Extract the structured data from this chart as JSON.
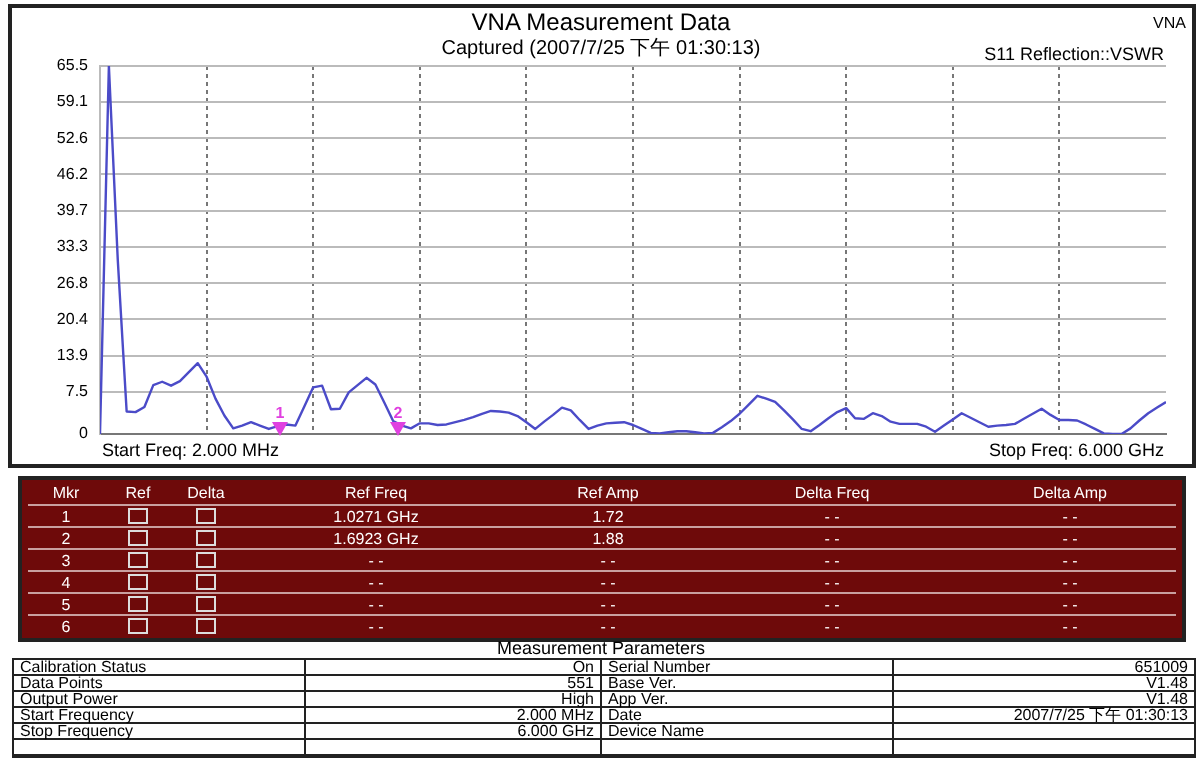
{
  "chart_data": {
    "type": "line",
    "title": "VNA Measurement Data",
    "subtitle": "Captured  (2007/7/25 下午 01:30:13)",
    "categories": [
      null,
      null,
      null,
      null,
      null,
      null,
      null,
      null,
      null,
      null,
      null,
      null,
      null,
      null,
      null,
      null,
      null,
      null,
      null,
      null,
      null,
      null,
      null,
      null,
      null,
      null,
      null,
      null,
      null,
      null,
      null,
      null,
      null,
      null,
      null,
      null,
      null,
      null,
      null,
      null,
      null,
      null,
      null,
      null,
      null,
      null,
      null,
      null,
      null,
      null,
      null,
      null,
      null,
      null,
      null,
      null,
      null,
      null,
      null,
      null,
      null,
      null,
      null,
      null,
      null,
      null,
      null,
      null,
      null,
      null,
      null,
      null,
      null,
      null,
      null,
      null,
      null,
      null,
      null,
      null,
      null,
      null,
      null,
      null,
      null,
      null,
      null,
      null,
      null,
      null,
      null,
      null,
      null,
      null,
      null,
      null,
      null,
      null,
      null,
      null,
      null,
      null,
      null,
      null,
      null,
      null,
      null,
      null,
      null,
      null,
      null,
      null,
      null,
      null,
      null,
      null,
      null,
      null,
      null,
      null,
      null
    ],
    "series": [
      {
        "color": "#4b4bc8",
        "values": [
          0,
          65.5,
          31,
          4,
          3.9,
          4.8,
          8.7,
          9.3,
          8.6,
          9.4,
          11.0,
          12.6,
          10.2,
          6.3,
          3.3,
          1.0,
          1.5,
          2.1,
          1.5,
          0.9,
          1.4,
          1.7,
          1.5,
          4.9,
          8.3,
          8.6,
          4.4,
          4.5,
          7.4,
          8.7,
          10.0,
          8.8,
          5.6,
          2.3,
          1.5,
          1.0,
          1.9,
          1.9,
          1.6,
          1.7,
          2.1,
          2.5,
          3.0,
          3.6,
          4.1,
          4.0,
          3.8,
          3.2,
          2.1,
          0.9,
          2.2,
          3.4,
          4.7,
          4.2,
          2.5,
          0.9,
          1.5,
          1.9,
          2.0,
          2.1,
          1.6,
          0.9,
          0.2,
          0.1,
          0.3,
          0.5,
          0.5,
          0.3,
          0.1,
          0.2,
          1.2,
          2.3,
          3.6,
          5.2,
          6.8,
          6.3,
          5.7,
          4.2,
          2.6,
          0.9,
          0.5,
          1.6,
          2.8,
          3.9,
          4.6,
          2.8,
          2.7,
          3.7,
          3.2,
          2.2,
          1.8,
          1.8,
          1.8,
          1.3,
          0.4,
          1.5,
          2.6,
          3.7,
          2.9,
          2.1,
          1.3,
          1.5,
          1.6,
          1.8,
          2.7,
          3.6,
          4.5,
          3.4,
          2.5,
          2.5,
          2.4,
          1.7,
          0.9,
          0.1,
          0,
          0,
          1.0,
          2.4,
          3.7,
          4.7,
          5.7
        ]
      }
    ],
    "ylim": [
      0,
      65.5
    ],
    "yticks": [
      0,
      7.5,
      13.9,
      20.4,
      26.8,
      33.3,
      39.7,
      46.2,
      52.6,
      59.1,
      65.5
    ],
    "grid": true,
    "legend": false,
    "tick_labels": "y",
    "marker": "none",
    "line_style": "solid",
    "annotations": [
      "Start Freq: 2.000 MHz",
      "Stop Freq: 6.000 GHz",
      "S11 Reflection::VSWR",
      "VNA",
      "1",
      "2",
      "Mkr",
      "Ref",
      "Delta",
      "Ref Freq",
      "Ref Amp",
      "Delta Freq",
      "Delta Amp",
      "1",
      "1.0271 GHz",
      "1.72",
      "- -",
      "- -",
      "2",
      "1.6923 GHz",
      "1.88",
      "- -",
      "- -",
      "3",
      "- -",
      "- -",
      "- -",
      "- -",
      "4",
      "- -",
      "- -",
      "- -",
      "- -",
      "5",
      "- -",
      "- -",
      "- -",
      "- -",
      "6",
      "- -",
      "- -",
      "- -",
      "- -",
      "Measurement Parameters",
      "Calibration Status",
      "On",
      "Serial Number",
      "651009",
      "Data Points",
      "551",
      "Base Ver.",
      "V1.48",
      "Output Power",
      "High",
      "App Ver.",
      "V1.48",
      "Start Frequency",
      "2.000 MHz",
      "Date",
      "2007/7/25 下午 01:30:13",
      "Stop Frequency",
      "6.000 GHz",
      "Device Name"
    ]
  }
}
